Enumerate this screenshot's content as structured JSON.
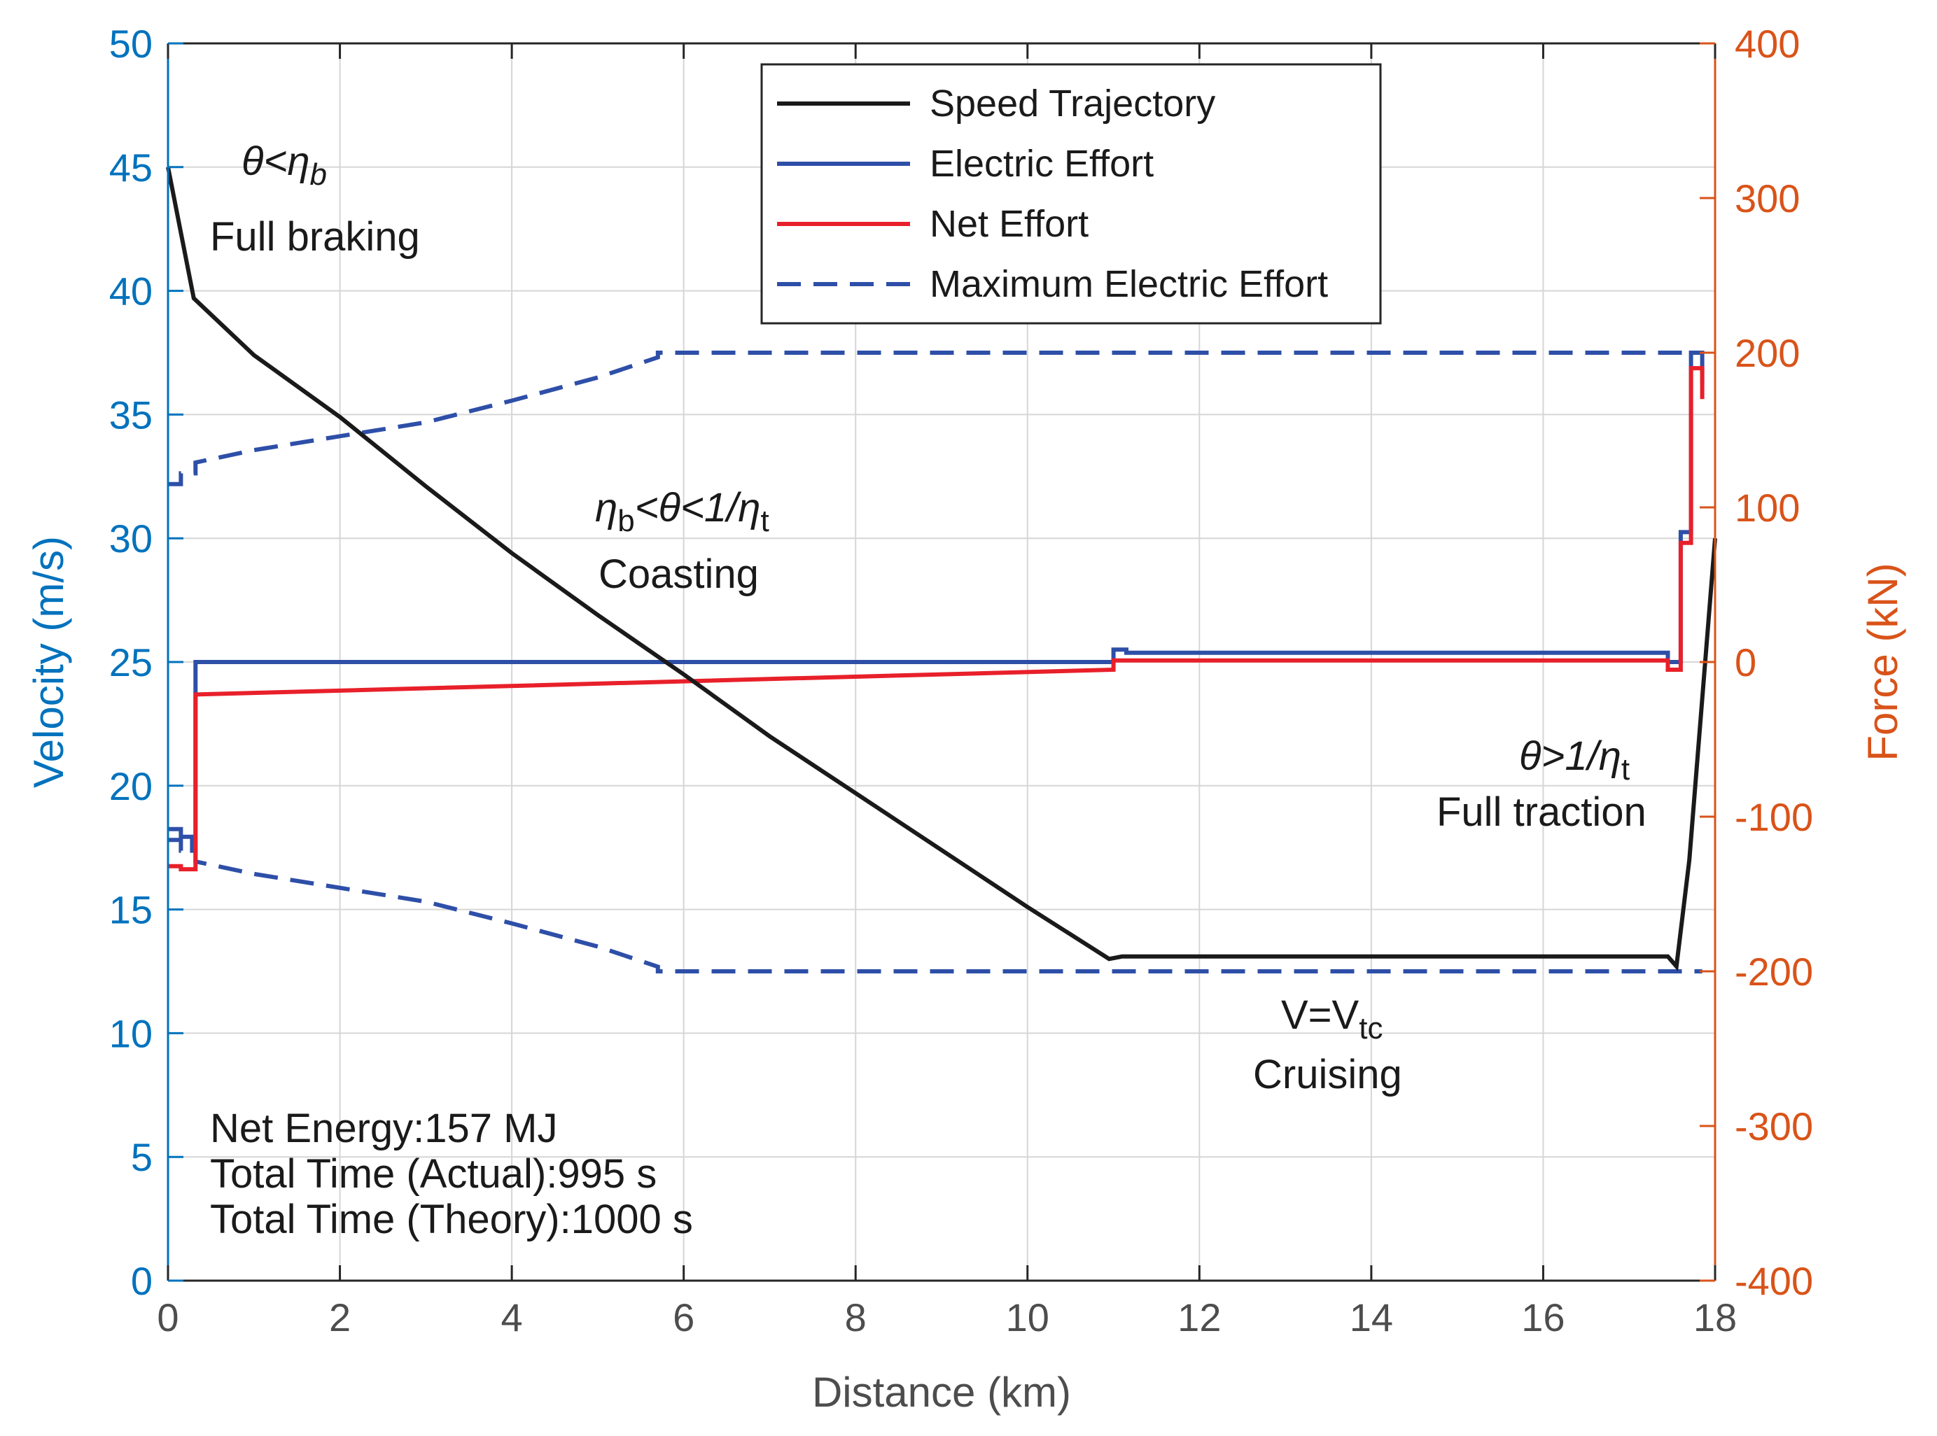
{
  "chart_data": {
    "type": "line",
    "title": "",
    "xlabel": "Distance (km)",
    "ylabel_left": "Velocity (m/s)",
    "ylabel_right": "Force (kN)",
    "xlim": [
      0,
      18
    ],
    "ylim_left": [
      0,
      50
    ],
    "ylim_right": [
      -400,
      400
    ],
    "xticks": [
      "0",
      "2",
      "4",
      "6",
      "8",
      "10",
      "12",
      "14",
      "16",
      "18"
    ],
    "yticks_left": [
      "0",
      "5",
      "10",
      "15",
      "20",
      "25",
      "30",
      "35",
      "40",
      "45",
      "50"
    ],
    "yticks_right": [
      "-400",
      "-300",
      "-200",
      "-100",
      "0",
      "100",
      "200",
      "300",
      "400"
    ],
    "grid": true,
    "colors": {
      "left_axis": "#0072BD",
      "right_axis": "#D95319",
      "speed": "#1a1a1a",
      "electric": "#2E4FA8",
      "net": "#E8202A",
      "max_electric": "#2E4FA8",
      "grid": "#d6d6d6"
    },
    "legend": {
      "placement": "top-center",
      "entries": [
        "Speed Trajectory",
        "Electric Effort",
        "Net Effort",
        "Maximum Electric Effort"
      ]
    },
    "series": [
      {
        "name": "Speed Trajectory",
        "axis": "left",
        "style": "solid",
        "x": [
          0,
          0.3,
          1.0,
          2.0,
          3.0,
          4.0,
          5.0,
          6.0,
          7.0,
          8.0,
          9.0,
          10.0,
          10.95,
          11.1,
          17.45,
          17.55,
          17.7,
          18.0
        ],
        "y": [
          45,
          39.7,
          37.4,
          34.9,
          32.1,
          29.4,
          26.9,
          24.5,
          22.0,
          19.7,
          17.4,
          15.1,
          13.0,
          13.1,
          13.1,
          12.7,
          17.0,
          30.0
        ]
      },
      {
        "name": "Electric Effort",
        "axis": "right",
        "style": "solid",
        "x": [
          0,
          0.15,
          0.15,
          0.28,
          0.28,
          0.32,
          0.32,
          11.0,
          11.0,
          11.15,
          11.15,
          17.45,
          17.45,
          17.6,
          17.6,
          17.72,
          17.72,
          17.85,
          17.85
        ],
        "y": [
          -108,
          -108,
          -113,
          -113,
          -122,
          -122,
          0,
          0,
          8,
          8,
          6,
          6,
          0,
          0,
          84,
          84,
          200,
          200,
          180
        ]
      },
      {
        "name": "Net Effort",
        "axis": "right",
        "style": "solid",
        "x": [
          0,
          0.15,
          0.15,
          0.32,
          0.32,
          11.0,
          11.0,
          17.45,
          17.45,
          17.6,
          17.6,
          17.72,
          17.72,
          17.85,
          17.85
        ],
        "y": [
          -132,
          -132,
          -134,
          -134,
          -21,
          -5,
          1,
          1,
          -5,
          -5,
          77,
          77,
          190,
          190,
          170
        ]
      },
      {
        "name": "Maximum Electric Effort",
        "axis": "right",
        "style": "dashed",
        "x": [
          0,
          0.15,
          0.15,
          0.32,
          0.32,
          1.0,
          2.0,
          3.0,
          4.0,
          5.0,
          5.7,
          5.7,
          17.85
        ],
        "y": [
          115,
          115,
          122,
          122,
          129,
          137,
          146,
          155,
          169,
          184,
          197,
          200,
          200
        ],
        "mirror_negative": true
      }
    ],
    "annotations": [
      {
        "id": "braking_cond",
        "parts": [
          "θ<η",
          "b"
        ],
        "label": "Full braking"
      },
      {
        "id": "coasting_cond",
        "parts": [
          "η",
          "b",
          "<θ<1/η",
          "t"
        ],
        "label": "Coasting"
      },
      {
        "id": "traction_cond",
        "parts": [
          "θ>1/η",
          "t"
        ],
        "label": "Full traction"
      },
      {
        "id": "cruise_cond",
        "parts": [
          "V=V",
          "tc"
        ],
        "label": "Cruising"
      }
    ],
    "info_text": [
      "Net Energy:157 MJ",
      "Total Time (Actual):995 s",
      "Total Time (Theory):1000 s"
    ]
  }
}
